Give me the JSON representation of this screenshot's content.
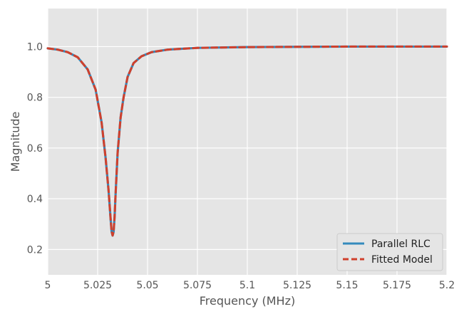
{
  "chart_data": {
    "type": "line",
    "title": "",
    "xlabel": "Frequency (MHz)",
    "ylabel": "Magnitude",
    "xlim": [
      5.0,
      5.2
    ],
    "ylim": [
      0.1,
      1.15
    ],
    "x_ticks": [
      5.0,
      5.025,
      5.05,
      5.075,
      5.1,
      5.125,
      5.15,
      5.175,
      5.2
    ],
    "x_tick_labels": [
      "5",
      "5.025",
      "5.05",
      "5.075",
      "5.1",
      "5.125",
      "5.15",
      "5.175",
      "5.2"
    ],
    "y_ticks": [
      0.2,
      0.4,
      0.6,
      0.8,
      1.0
    ],
    "y_tick_labels": [
      "0.2",
      "0.4",
      "0.6",
      "0.8",
      "1.0"
    ],
    "grid": true,
    "legend_position": "bottom-right",
    "series": [
      {
        "name": "Parallel RLC",
        "color": "#348abd",
        "style": "solid",
        "x": [
          5.0,
          5.005,
          5.01,
          5.015,
          5.02,
          5.024,
          5.027,
          5.029,
          5.0305,
          5.0315,
          5.032,
          5.0325,
          5.033,
          5.0335,
          5.034,
          5.035,
          5.0365,
          5.038,
          5.04,
          5.043,
          5.047,
          5.052,
          5.06,
          5.075,
          5.1,
          5.125,
          5.15,
          5.175,
          5.2
        ],
        "y": [
          0.993,
          0.988,
          0.978,
          0.958,
          0.91,
          0.83,
          0.7,
          0.56,
          0.43,
          0.32,
          0.27,
          0.255,
          0.27,
          0.33,
          0.42,
          0.58,
          0.72,
          0.8,
          0.88,
          0.935,
          0.962,
          0.978,
          0.988,
          0.995,
          0.998,
          0.999,
          1.0,
          1.0,
          1.0
        ]
      },
      {
        "name": "Fitted Model",
        "color": "#d0402c",
        "style": "dashed",
        "x": [
          5.0,
          5.005,
          5.01,
          5.015,
          5.02,
          5.024,
          5.027,
          5.029,
          5.0305,
          5.0315,
          5.032,
          5.0325,
          5.033,
          5.0335,
          5.034,
          5.035,
          5.0365,
          5.038,
          5.04,
          5.043,
          5.047,
          5.052,
          5.06,
          5.075,
          5.1,
          5.125,
          5.15,
          5.175,
          5.2
        ],
        "y": [
          0.993,
          0.988,
          0.978,
          0.958,
          0.91,
          0.83,
          0.7,
          0.56,
          0.43,
          0.32,
          0.27,
          0.255,
          0.27,
          0.33,
          0.42,
          0.58,
          0.72,
          0.8,
          0.88,
          0.935,
          0.962,
          0.978,
          0.988,
          0.995,
          0.998,
          0.999,
          1.0,
          1.0,
          1.0
        ]
      }
    ]
  }
}
